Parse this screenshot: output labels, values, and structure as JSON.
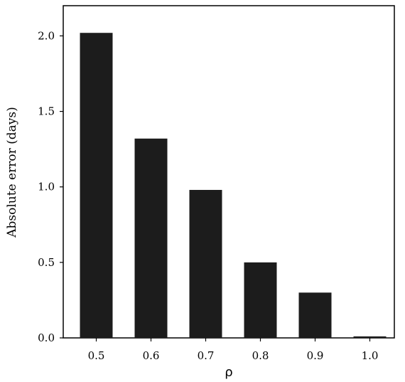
{
  "chart_data": {
    "type": "bar",
    "categories": [
      "0.5",
      "0.6",
      "0.7",
      "0.8",
      "0.9",
      "1.0"
    ],
    "values": [
      2.02,
      1.32,
      0.98,
      0.5,
      0.3,
      0.01
    ],
    "xlabel": "ρ",
    "ylabel": "Absolute error (days)",
    "ylim": [
      0,
      2.2
    ],
    "yticks": [
      0.0,
      0.5,
      1.0,
      1.5,
      2.0
    ],
    "ytick_labels": [
      "0.0",
      "0.5",
      "1.0",
      "1.5",
      "2.0"
    ],
    "bar_color": "#1c1c1c",
    "grid": false,
    "legend": "none"
  }
}
